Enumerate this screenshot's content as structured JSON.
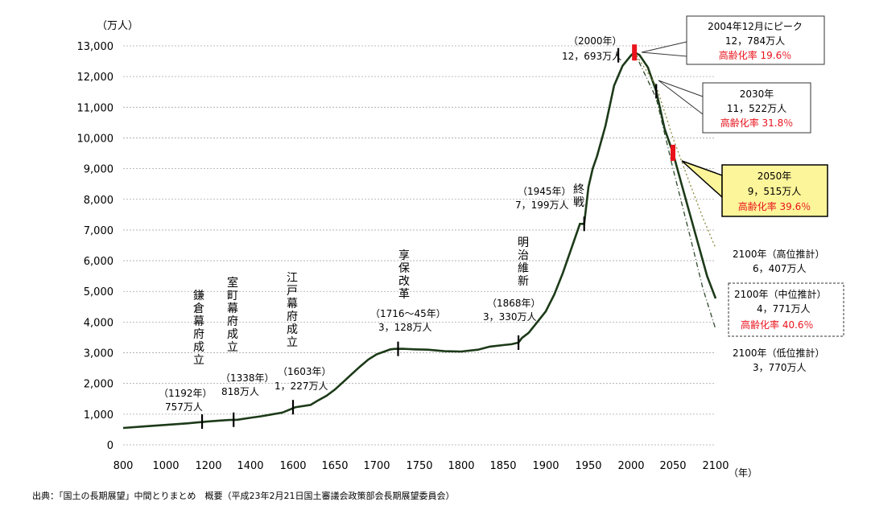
{
  "chart_data": {
    "type": "line",
    "yunit": "（万人）",
    "xunit": "（年）",
    "ylim": [
      0,
      13000
    ],
    "xlim": [
      800,
      2100
    ],
    "yticks": [
      "13,000",
      "12,000",
      "11,000",
      "10,000",
      "9,000",
      "8,000",
      "7,000",
      "6,000",
      "5,000",
      "4,000",
      "3,000",
      "2,000",
      "1,000",
      "0"
    ],
    "xticks": [
      "800",
      "1000",
      "1200",
      "1400",
      "1600",
      "1650",
      "1700",
      "1750",
      "1800",
      "1850",
      "1900",
      "1950",
      "2000",
      "2050",
      "2100"
    ],
    "grid": true,
    "series": [
      {
        "points": [
          [
            800,
            550
          ],
          [
            900,
            600
          ],
          [
            1000,
            650
          ],
          [
            1100,
            700
          ],
          [
            1150,
            730
          ],
          [
            1192,
            757
          ],
          [
            1250,
            790
          ],
          [
            1300,
            810
          ],
          [
            1338,
            818
          ],
          [
            1400,
            880
          ],
          [
            1450,
            930
          ],
          [
            1500,
            990
          ],
          [
            1550,
            1050
          ],
          [
            1603,
            1227
          ],
          [
            1621,
            1300
          ],
          [
            1630,
            1450
          ],
          [
            1640,
            1600
          ],
          [
            1650,
            1800
          ],
          [
            1660,
            2050
          ],
          [
            1670,
            2300
          ],
          [
            1680,
            2550
          ],
          [
            1690,
            2780
          ],
          [
            1700,
            2950
          ],
          [
            1710,
            3050
          ],
          [
            1716,
            3110
          ],
          [
            1721,
            3128
          ],
          [
            1730,
            3130
          ],
          [
            1745,
            3110
          ],
          [
            1760,
            3100
          ],
          [
            1780,
            3050
          ],
          [
            1800,
            3040
          ],
          [
            1820,
            3100
          ],
          [
            1834,
            3200
          ],
          [
            1850,
            3250
          ],
          [
            1860,
            3280
          ],
          [
            1868,
            3330
          ],
          [
            1872,
            3480
          ],
          [
            1880,
            3650
          ],
          [
            1890,
            4000
          ],
          [
            1900,
            4350
          ],
          [
            1910,
            4900
          ],
          [
            1920,
            5600
          ],
          [
            1930,
            6400
          ],
          [
            1940,
            7200
          ],
          [
            1945,
            7199
          ],
          [
            1950,
            8400
          ],
          [
            1955,
            9000
          ],
          [
            1960,
            9400
          ],
          [
            1970,
            10400
          ],
          [
            1980,
            11700
          ],
          [
            1990,
            12350
          ],
          [
            2000,
            12693
          ],
          [
            2004,
            12784
          ],
          [
            2010,
            12700
          ],
          [
            2020,
            12300
          ],
          [
            2030,
            11522
          ],
          [
            2040,
            10300
          ],
          [
            2050,
            9515
          ],
          [
            2060,
            8500
          ],
          [
            2070,
            7500
          ],
          [
            2080,
            6500
          ],
          [
            2090,
            5500
          ],
          [
            2100,
            4771
          ]
        ]
      },
      {
        "points": [
          [
            2004,
            12784
          ],
          [
            2030,
            11700
          ],
          [
            2050,
            10000
          ],
          [
            2070,
            8500
          ],
          [
            2085,
            7400
          ],
          [
            2100,
            6407
          ]
        ]
      },
      {
        "points": [
          [
            2004,
            12784
          ],
          [
            2030,
            11300
          ],
          [
            2050,
            9000
          ],
          [
            2070,
            6800
          ],
          [
            2085,
            5100
          ],
          [
            2100,
            3770
          ]
        ]
      }
    ],
    "annotations": [
      {
        "id": "kamakura",
        "label_v": "鎌倉幕府成立",
        "year": "（1192年）",
        "pop": "757万人"
      },
      {
        "id": "muromachi",
        "label_v": "室町幕府成立",
        "year": "（1338年）",
        "pop": "818万人"
      },
      {
        "id": "edo",
        "label_v": "江戸幕府成立",
        "year": "（1603年）",
        "pop": "1，227万人"
      },
      {
        "id": "kyoho",
        "label_v": "享保改革",
        "year": "（1716～45年）",
        "pop": "3，128万人"
      },
      {
        "id": "meiji",
        "label_v": "明治維新",
        "year": "（1868年）",
        "pop": "3，330万人"
      },
      {
        "id": "shusen",
        "label_v": "終戦",
        "year": "（1945年）",
        "pop": "7，199万人"
      },
      {
        "id": "y2000",
        "year": "（2000年）",
        "pop": "12，693万人"
      }
    ],
    "callouts": [
      {
        "id": "peak",
        "lines": [
          "2004年12月にピーク",
          "12，784万人"
        ],
        "aging": "高齢化率 19.6％"
      },
      {
        "id": "y2030",
        "lines": [
          "2030年",
          "11，522万人"
        ],
        "aging": "高齢化率 31.8％"
      },
      {
        "id": "y2050",
        "lines": [
          "2050年",
          "9，515万人"
        ],
        "aging": "高齢化率 39.6％"
      }
    ],
    "projections": [
      {
        "id": "high",
        "title": "2100年（高位推計）",
        "pop": "6，407万人"
      },
      {
        "id": "mid",
        "title": "2100年（中位推計）",
        "pop": "4，771万人",
        "aging": "高齢化率 40.6％"
      },
      {
        "id": "low",
        "title": "2100年（低位推計）",
        "pop": "3，770万人"
      }
    ],
    "colors": {
      "line": "#1c3a18",
      "grid": "#a8a8a8",
      "highlight": "#e8121b",
      "callout_fill": "#fdf59a",
      "projection_high": "#8b8a3c",
      "projection_low": "#2f4a2c"
    }
  },
  "source": "出典：「国土の長期展望」中間とりまとめ　概要（平成23年2月21日国土審議会政策部会長期展望委員会）"
}
